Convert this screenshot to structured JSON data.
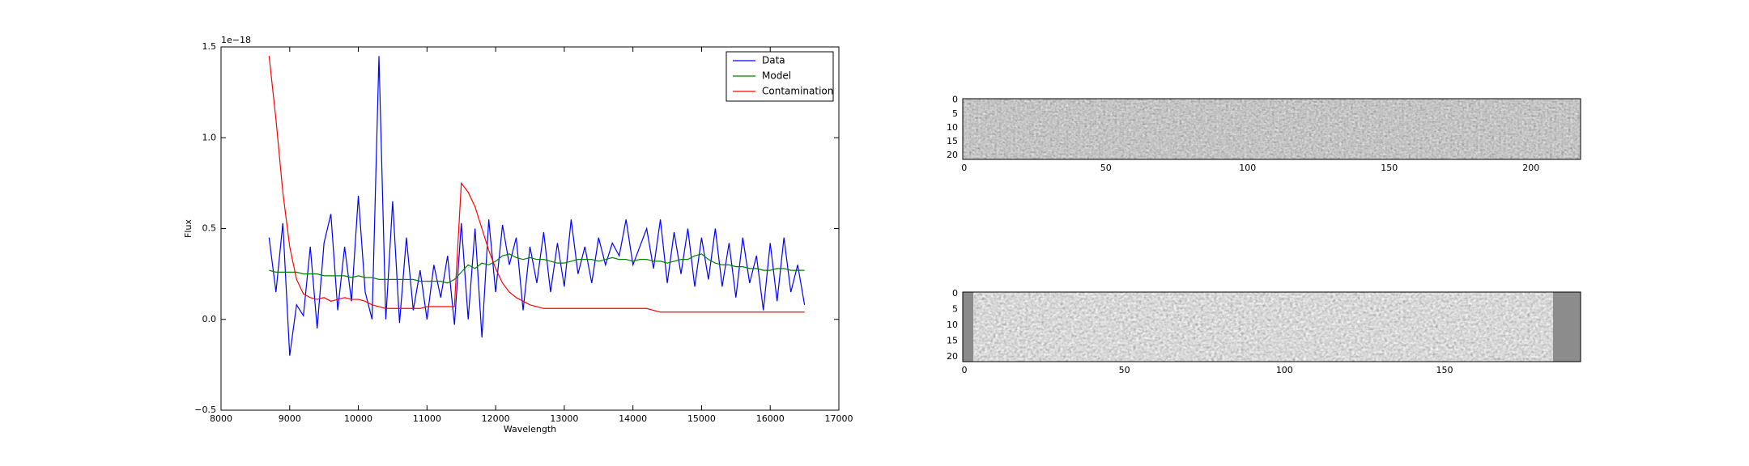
{
  "chart_data": [
    {
      "type": "line",
      "xlabel": "Wavelength",
      "ylabel": "Flux",
      "offset_text": "1e−18",
      "xlim": [
        8000,
        17000
      ],
      "xticks": [
        8000,
        9000,
        10000,
        11000,
        12000,
        13000,
        14000,
        15000,
        16000,
        17000
      ],
      "ylim": [
        -0.5,
        1.5
      ],
      "yticks": [
        {
          "value": -0.5,
          "label": "−0.5"
        },
        {
          "value": 0,
          "label": "0.0"
        },
        {
          "value": 0.5,
          "label": "0.5"
        },
        {
          "value": 1,
          "label": "1.0"
        },
        {
          "value": 1.5,
          "label": "1.5"
        }
      ],
      "legend": "upper right",
      "x": [
        8700,
        8800,
        8900,
        9000,
        9100,
        9200,
        9300,
        9400,
        9500,
        9600,
        9700,
        9800,
        9900,
        10000,
        10100,
        10200,
        10300,
        10400,
        10500,
        10600,
        10700,
        10800,
        10900,
        11000,
        11100,
        11200,
        11300,
        11400,
        11500,
        11600,
        11700,
        11800,
        11900,
        12000,
        12100,
        12200,
        12300,
        12400,
        12500,
        12600,
        12700,
        12800,
        12900,
        13000,
        13100,
        13200,
        13300,
        13400,
        13500,
        13600,
        13700,
        13800,
        13900,
        14000,
        14100,
        14200,
        14300,
        14400,
        14500,
        14600,
        14700,
        14800,
        14900,
        15000,
        15100,
        15200,
        15300,
        15400,
        15500,
        15600,
        15700,
        15800,
        15900,
        16000,
        16100,
        16200,
        16300,
        16400,
        16500
      ],
      "series": [
        {
          "name": "Data",
          "color": "#0000ff",
          "values": [
            0.45,
            0.15,
            0.53,
            -0.2,
            0.08,
            0.02,
            0.4,
            -0.05,
            0.42,
            0.58,
            0.05,
            0.4,
            0.1,
            0.68,
            0.15,
            0.0,
            1.45,
            0.0,
            0.65,
            -0.02,
            0.45,
            0.05,
            0.27,
            0.0,
            0.3,
            0.12,
            0.35,
            -0.03,
            0.53,
            0.0,
            0.5,
            -0.1,
            0.55,
            0.15,
            0.52,
            0.3,
            0.45,
            0.05,
            0.4,
            0.2,
            0.48,
            0.15,
            0.42,
            0.18,
            0.55,
            0.25,
            0.4,
            0.2,
            0.45,
            0.3,
            0.42,
            0.35,
            0.55,
            0.3,
            0.4,
            0.5,
            0.28,
            0.55,
            0.2,
            0.48,
            0.25,
            0.5,
            0.18,
            0.45,
            0.22,
            0.5,
            0.18,
            0.42,
            0.12,
            0.45,
            0.2,
            0.35,
            0.05,
            0.42,
            0.1,
            0.45,
            0.15,
            0.3,
            0.08
          ]
        },
        {
          "name": "Model",
          "color": "#008000",
          "values": [
            0.27,
            0.26,
            0.26,
            0.26,
            0.26,
            0.25,
            0.25,
            0.25,
            0.24,
            0.24,
            0.24,
            0.24,
            0.23,
            0.24,
            0.23,
            0.23,
            0.22,
            0.22,
            0.22,
            0.22,
            0.22,
            0.22,
            0.21,
            0.21,
            0.21,
            0.21,
            0.2,
            0.22,
            0.26,
            0.3,
            0.28,
            0.31,
            0.3,
            0.32,
            0.35,
            0.36,
            0.34,
            0.33,
            0.34,
            0.33,
            0.33,
            0.32,
            0.31,
            0.31,
            0.32,
            0.33,
            0.33,
            0.33,
            0.32,
            0.33,
            0.34,
            0.33,
            0.33,
            0.32,
            0.33,
            0.33,
            0.32,
            0.32,
            0.31,
            0.32,
            0.33,
            0.33,
            0.35,
            0.36,
            0.33,
            0.31,
            0.3,
            0.3,
            0.29,
            0.29,
            0.28,
            0.28,
            0.27,
            0.27,
            0.28,
            0.28,
            0.27,
            0.27,
            0.27
          ]
        },
        {
          "name": "Contamination",
          "color": "#ff0000",
          "values": [
            1.45,
            1.1,
            0.7,
            0.4,
            0.22,
            0.14,
            0.12,
            0.11,
            0.12,
            0.1,
            0.11,
            0.12,
            0.11,
            0.11,
            0.1,
            0.08,
            0.07,
            0.06,
            0.06,
            0.06,
            0.06,
            0.06,
            0.06,
            0.07,
            0.07,
            0.07,
            0.07,
            0.07,
            0.75,
            0.7,
            0.62,
            0.5,
            0.38,
            0.28,
            0.2,
            0.15,
            0.12,
            0.1,
            0.08,
            0.07,
            0.06,
            0.06,
            0.06,
            0.06,
            0.06,
            0.06,
            0.06,
            0.06,
            0.06,
            0.06,
            0.06,
            0.06,
            0.06,
            0.06,
            0.06,
            0.06,
            0.05,
            0.04,
            0.04,
            0.04,
            0.04,
            0.04,
            0.04,
            0.04,
            0.04,
            0.04,
            0.04,
            0.04,
            0.04,
            0.04,
            0.04,
            0.04,
            0.04,
            0.04,
            0.04,
            0.04,
            0.04,
            0.04,
            0.04
          ]
        }
      ]
    },
    {
      "type": "image",
      "xlim": [
        -0.5,
        217.5
      ],
      "xticks": [
        0,
        50,
        100,
        150,
        200
      ],
      "ylim": [
        21.5,
        -0.5
      ],
      "yticks": [
        0,
        5,
        10,
        15,
        20
      ]
    },
    {
      "type": "image",
      "xlim": [
        -0.5,
        192.5
      ],
      "xticks": [
        0,
        50,
        100,
        150
      ],
      "ylim": [
        21.5,
        -0.5
      ],
      "yticks": [
        0,
        5,
        10,
        15,
        20
      ]
    }
  ]
}
